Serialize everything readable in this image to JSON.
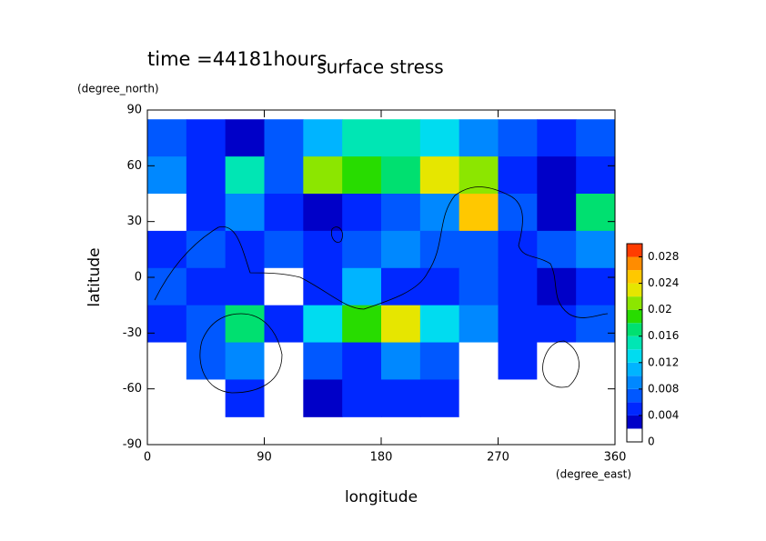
{
  "chart_data": {
    "type": "contour",
    "title": "surface stress",
    "time_label": "time =44181hours",
    "xlabel": "longitude",
    "ylabel": "latitude",
    "x_unit": "(degree_east)",
    "y_unit": "(degree_north)",
    "xlim": [
      0,
      360
    ],
    "ylim": [
      -90,
      90
    ],
    "xticks": [
      0,
      90,
      180,
      270,
      360
    ],
    "yticks": [
      -90,
      -60,
      -30,
      0,
      30,
      60,
      90
    ],
    "x": [
      15,
      45,
      75,
      105,
      135,
      165,
      195,
      225,
      255,
      285,
      315,
      345
    ],
    "y": [
      75,
      55,
      35,
      15,
      -5,
      -25,
      -45,
      -65
    ],
    "values": [
      [
        0.006,
        0.004,
        0.002,
        0.006,
        0.01,
        0.014,
        0.014,
        0.012,
        0.008,
        0.006,
        0.004,
        0.006
      ],
      [
        0.008,
        0.004,
        0.014,
        0.006,
        0.02,
        0.018,
        0.016,
        0.022,
        0.02,
        0.004,
        0.002,
        0.004
      ],
      [
        0.001,
        0.004,
        0.008,
        0.004,
        0.002,
        0.004,
        0.006,
        0.008,
        0.024,
        0.006,
        0.002,
        0.016
      ],
      [
        0.004,
        0.006,
        0.004,
        0.006,
        0.004,
        0.006,
        0.008,
        0.006,
        0.006,
        0.004,
        0.006,
        0.008
      ],
      [
        0.006,
        0.004,
        0.004,
        0.001,
        0.004,
        0.01,
        0.004,
        0.004,
        0.006,
        0.004,
        0.002,
        0.004
      ],
      [
        0.004,
        0.006,
        0.016,
        0.004,
        0.012,
        0.018,
        0.022,
        0.012,
        0.008,
        0.004,
        0.004,
        0.006
      ],
      [
        0.001,
        0.006,
        0.008,
        0.001,
        0.006,
        0.004,
        0.008,
        0.006,
        0.001,
        0.004,
        0.001,
        0.001
      ],
      [
        0.001,
        0.001,
        0.004,
        0.001,
        0.002,
        0.004,
        0.004,
        0.004,
        0.001,
        0.001,
        0.001,
        0.001
      ]
    ],
    "levels": [
      0,
      0.002,
      0.004,
      0.006,
      0.008,
      0.01,
      0.012,
      0.014,
      0.016,
      0.018,
      0.02,
      0.022,
      0.024,
      0.026,
      0.028,
      0.03
    ],
    "colors": [
      "#ffffff",
      "#0000c8",
      "#0028ff",
      "#0058ff",
      "#0088ff",
      "#00b4ff",
      "#00dcf0",
      "#00e6b4",
      "#00e070",
      "#28dc00",
      "#8ce600",
      "#e6e600",
      "#ffc800",
      "#ff8c00",
      "#ff3c00"
    ],
    "colorbar_ticks": [
      0,
      0.004,
      0.008,
      0.012,
      0.016,
      0.02,
      0.024,
      0.028
    ]
  }
}
